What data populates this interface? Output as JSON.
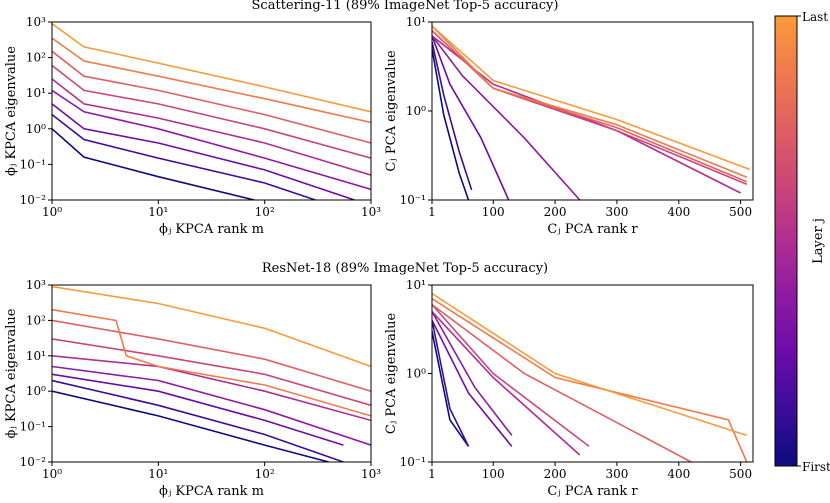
{
  "chart_data": [
    {
      "type": "line",
      "title": "Scattering-11 (89% ImageNet Top-5 accuracy)",
      "xlabel": "ϕⱼ KPCA rank m",
      "ylabel": "ϕⱼ KPCA eigenvalue",
      "xscale": "log",
      "yscale": "log",
      "xlim": [
        1,
        1000
      ],
      "ylim": [
        0.01,
        1000
      ],
      "xticks": [
        {
          "value": 1,
          "label": "10⁰"
        },
        {
          "value": 10,
          "label": "10¹"
        },
        {
          "value": 100,
          "label": "10²"
        },
        {
          "value": 1000,
          "label": "10³"
        }
      ],
      "yticks": [
        {
          "value": 0.01,
          "label": "10⁻²"
        },
        {
          "value": 0.1,
          "label": "10⁻¹"
        },
        {
          "value": 1,
          "label": "10⁰"
        },
        {
          "value": 10,
          "label": "10¹"
        },
        {
          "value": 100,
          "label": "10²"
        },
        {
          "value": 1000,
          "label": "10³"
        }
      ],
      "series": [
        {
          "color": "#0c0c80",
          "x": [
            1,
            2,
            10,
            80
          ],
          "values": [
            1,
            0.16,
            0.045,
            0.01
          ]
        },
        {
          "color": "#3b0d99",
          "x": [
            1,
            2,
            10,
            100,
            300
          ],
          "values": [
            2.5,
            0.5,
            0.15,
            0.03,
            0.01
          ]
        },
        {
          "color": "#6a0ca8",
          "x": [
            1,
            2,
            10,
            100,
            700
          ],
          "values": [
            5,
            1,
            0.4,
            0.07,
            0.01
          ]
        },
        {
          "color": "#8e1aa3",
          "x": [
            1,
            2,
            10,
            100,
            1000
          ],
          "values": [
            12,
            3,
            1,
            0.15,
            0.02
          ]
        },
        {
          "color": "#b02e91",
          "x": [
            1,
            2,
            10,
            100,
            1000
          ],
          "values": [
            25,
            5,
            2,
            0.4,
            0.05
          ]
        },
        {
          "color": "#cb4678",
          "x": [
            1,
            2,
            10,
            100,
            1000
          ],
          "values": [
            60,
            12,
            5,
            1,
            0.15
          ]
        },
        {
          "color": "#e05f62",
          "x": [
            1,
            2,
            10,
            100,
            1000
          ],
          "values": [
            150,
            30,
            12,
            2.5,
            0.4
          ]
        },
        {
          "color": "#ef7a4c",
          "x": [
            1,
            2,
            10,
            100,
            1000
          ],
          "values": [
            350,
            80,
            30,
            7,
            1.5
          ]
        },
        {
          "color": "#f99a3a",
          "x": [
            1,
            2,
            10,
            100,
            1000
          ],
          "values": [
            900,
            200,
            70,
            15,
            3
          ]
        }
      ]
    },
    {
      "type": "line",
      "xlabel": "Cⱼ PCA rank r",
      "ylabel": "Cⱼ PCA eigenvalue",
      "xscale": "linear",
      "yscale": "log",
      "xlim": [
        1,
        520
      ],
      "ylim": [
        0.1,
        10
      ],
      "xticks": [
        1,
        100,
        200,
        300,
        400,
        500
      ],
      "yticks": [
        {
          "value": 0.1,
          "label": "10⁻¹"
        },
        {
          "value": 1,
          "label": "10⁰"
        },
        {
          "value": 10,
          "label": "10¹"
        }
      ],
      "series": [
        {
          "color": "#0c0c80",
          "x": [
            1,
            20,
            45,
            60
          ],
          "values": [
            5,
            0.9,
            0.2,
            0.1
          ]
        },
        {
          "color": "#3b0d99",
          "x": [
            1,
            20,
            45,
            65
          ],
          "values": [
            6,
            1.5,
            0.35,
            0.13
          ]
        },
        {
          "color": "#6a0ca8",
          "x": [
            1,
            30,
            80,
            125
          ],
          "values": [
            7,
            2,
            0.5,
            0.1
          ]
        },
        {
          "color": "#8e1aa3",
          "x": [
            1,
            50,
            150,
            240
          ],
          "values": [
            7,
            2.5,
            0.5,
            0.1
          ]
        },
        {
          "color": "#b02e91",
          "x": [
            1,
            100,
            300,
            500
          ],
          "values": [
            7,
            2,
            0.6,
            0.12
          ]
        },
        {
          "color": "#cb4678",
          "x": [
            1,
            100,
            300,
            510
          ],
          "values": [
            8,
            1.8,
            0.6,
            0.15
          ]
        },
        {
          "color": "#e05f62",
          "x": [
            1,
            100,
            300,
            510
          ],
          "values": [
            8,
            1.8,
            0.65,
            0.16
          ]
        },
        {
          "color": "#ef7a4c",
          "x": [
            1,
            100,
            300,
            510
          ],
          "values": [
            9,
            1.8,
            0.7,
            0.18
          ]
        },
        {
          "color": "#f99a3a",
          "x": [
            1,
            100,
            300,
            515
          ],
          "values": [
            9,
            2.2,
            0.8,
            0.22
          ]
        }
      ]
    },
    {
      "type": "line",
      "title": "ResNet-18 (89% ImageNet Top-5 accuracy)",
      "xlabel": "ϕⱼ KPCA rank m",
      "ylabel": "ϕⱼ KPCA eigenvalue",
      "xscale": "log",
      "yscale": "log",
      "xlim": [
        1,
        1000
      ],
      "ylim": [
        0.01,
        1000
      ],
      "xticks": [
        {
          "value": 1,
          "label": "10⁰"
        },
        {
          "value": 10,
          "label": "10¹"
        },
        {
          "value": 100,
          "label": "10²"
        },
        {
          "value": 1000,
          "label": "10³"
        }
      ],
      "yticks": [
        {
          "value": 0.01,
          "label": "10⁻²"
        },
        {
          "value": 0.1,
          "label": "10⁻¹"
        },
        {
          "value": 1,
          "label": "10⁰"
        },
        {
          "value": 10,
          "label": "10¹"
        },
        {
          "value": 100,
          "label": "10²"
        },
        {
          "value": 1000,
          "label": "10³"
        }
      ],
      "series": [
        {
          "color": "#0c0c80",
          "x": [
            1,
            10,
            100,
            400
          ],
          "values": [
            1,
            0.2,
            0.03,
            0.01
          ]
        },
        {
          "color": "#3b0d99",
          "x": [
            1,
            10,
            100,
            550
          ],
          "values": [
            2,
            0.4,
            0.06,
            0.01
          ]
        },
        {
          "color": "#6a0ca8",
          "x": [
            1,
            10,
            100,
            550
          ],
          "values": [
            3,
            1,
            0.15,
            0.03
          ]
        },
        {
          "color": "#8e1aa3",
          "x": [
            1,
            10,
            100,
            1000
          ],
          "values": [
            5,
            2,
            0.3,
            0.03
          ]
        },
        {
          "color": "#b02e91",
          "x": [
            1,
            10,
            100,
            1000
          ],
          "values": [
            10,
            5,
            1,
            0.15
          ]
        },
        {
          "color": "#cb4678",
          "x": [
            1,
            10,
            100,
            1000
          ],
          "values": [
            30,
            10,
            3,
            0.4
          ]
        },
        {
          "color": "#e05f62",
          "x": [
            1,
            10,
            100,
            1000
          ],
          "values": [
            100,
            30,
            8,
            1
          ]
        },
        {
          "color": "#ef7a4c",
          "x": [
            1,
            4,
            5,
            10,
            100,
            1000
          ],
          "values": [
            200,
            100,
            10,
            5,
            1.5,
            0.2
          ]
        },
        {
          "color": "#f99a3a",
          "x": [
            1,
            10,
            100,
            1000
          ],
          "values": [
            900,
            300,
            60,
            5
          ]
        }
      ]
    },
    {
      "type": "line",
      "xlabel": "Cⱼ PCA rank r",
      "ylabel": "Cⱼ PCA eigenvalue",
      "xscale": "linear",
      "yscale": "log",
      "xlim": [
        1,
        520
      ],
      "ylim": [
        0.1,
        10
      ],
      "xticks": [
        1,
        100,
        200,
        300,
        400,
        500
      ],
      "yticks": [
        {
          "value": 0.1,
          "label": "10⁻¹"
        },
        {
          "value": 1,
          "label": "10⁰"
        },
        {
          "value": 10,
          "label": "10¹"
        }
      ],
      "series": [
        {
          "color": "#0c0c80",
          "x": [
            1,
            30,
            60
          ],
          "values": [
            3,
            0.3,
            0.15
          ]
        },
        {
          "color": "#3b0d99",
          "x": [
            1,
            30,
            60
          ],
          "values": [
            4,
            0.4,
            0.15
          ]
        },
        {
          "color": "#6a0ca8",
          "x": [
            1,
            60,
            130
          ],
          "values": [
            4,
            0.6,
            0.15
          ]
        },
        {
          "color": "#8e1aa3",
          "x": [
            1,
            70,
            130
          ],
          "values": [
            5,
            0.7,
            0.2
          ]
        },
        {
          "color": "#b02e91",
          "x": [
            1,
            100,
            240
          ],
          "values": [
            5,
            0.9,
            0.12
          ]
        },
        {
          "color": "#cb4678",
          "x": [
            1,
            100,
            255
          ],
          "values": [
            6,
            1,
            0.15
          ]
        },
        {
          "color": "#e05f62",
          "x": [
            1,
            150,
            420
          ],
          "values": [
            6,
            1,
            0.1
          ]
        },
        {
          "color": "#ef7a4c",
          "x": [
            1,
            200,
            480,
            510
          ],
          "values": [
            7,
            0.9,
            0.3,
            0.1
          ]
        },
        {
          "color": "#f99a3a",
          "x": [
            1,
            200,
            510
          ],
          "values": [
            8,
            1,
            0.2
          ]
        }
      ]
    },
    {
      "type": "colorbar",
      "label": "Layer j",
      "top_label": "Last",
      "bottom_label": "First",
      "colors": [
        "#0c0c80",
        "#3b0d99",
        "#6a0ca8",
        "#8e1aa3",
        "#b02e91",
        "#cb4678",
        "#e05f62",
        "#ef7a4c",
        "#f99a3a"
      ]
    }
  ]
}
